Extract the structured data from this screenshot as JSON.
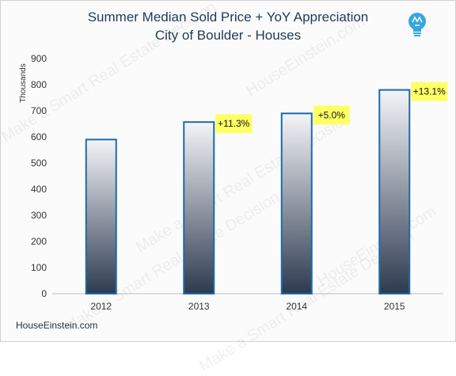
{
  "title_line1": "Summer Median Sold Price + YoY Appreciation",
  "title_line2": "City of Boulder - Houses",
  "footer": "HouseEinstein.com",
  "watermark": [
    "Make a Smart Real Estate Decision",
    "HouseEinstein.com"
  ],
  "logo_icon": "lightbulb-icon",
  "colors": {
    "bar_border": "#1e6aa8",
    "bar_top": "#f4f5f8",
    "bar_bottom": "#2d3a4f",
    "label_bg": "#ffff66",
    "title": "#1f3a5a"
  },
  "chart_data": {
    "type": "bar",
    "categories": [
      "2012",
      "2013",
      "2014",
      "2015"
    ],
    "values": [
      590,
      657,
      690,
      780
    ],
    "annotations": [
      "",
      "+11.3%",
      "+5.0%",
      "+13.1%"
    ],
    "ylabel": "Thousands",
    "yticks": [
      "0",
      "100",
      "200",
      "300",
      "400",
      "500",
      "600",
      "700",
      "800",
      "900"
    ],
    "ylim": [
      0,
      900
    ],
    "grid": false,
    "legend": "none"
  }
}
